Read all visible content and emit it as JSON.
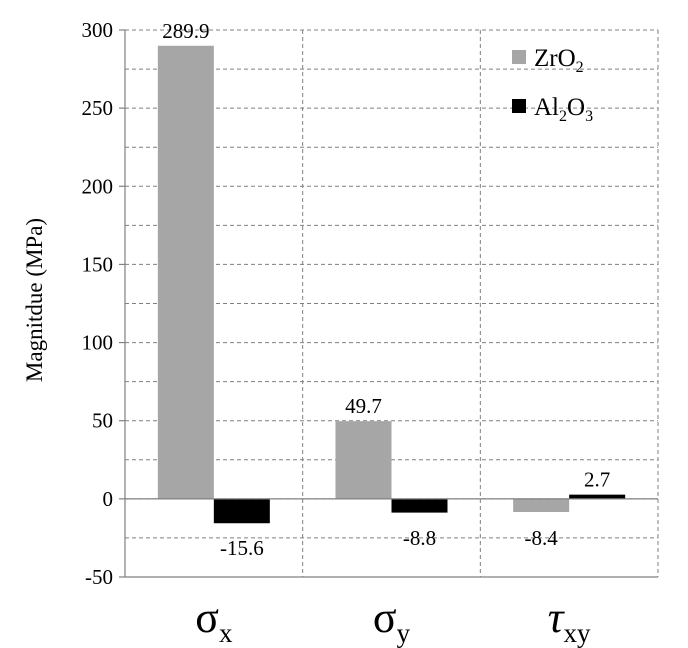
{
  "chart_data": {
    "type": "bar",
    "categories": [
      "σx",
      "σy",
      "τxy"
    ],
    "category_labels": [
      {
        "main": "σ",
        "sub": "x"
      },
      {
        "main": "σ",
        "sub": "y"
      },
      {
        "main": "τ",
        "sub": "xy"
      }
    ],
    "series": [
      {
        "name": "ZrO2",
        "legend": {
          "main": "ZrO",
          "sub": "2"
        },
        "color": "#a6a6a6",
        "values": [
          289.9,
          49.7,
          -8.4
        ],
        "labels": [
          "289.9",
          "49.7",
          "-8.4"
        ]
      },
      {
        "name": "Al2O3",
        "legend": {
          "parts": [
            {
              "t": "Al",
              "s": false
            },
            {
              "t": "2",
              "s": true
            },
            {
              "t": "O",
              "s": false
            },
            {
              "t": "3",
              "s": true
            }
          ]
        },
        "color": "#000000",
        "values": [
          -15.6,
          -8.8,
          2.7
        ],
        "labels": [
          "-15.6",
          "-8.8",
          "2.7"
        ]
      }
    ],
    "ylabel": "Magnitdue (MPa)",
    "ylim": [
      -50,
      300
    ],
    "yticks": [
      -50,
      0,
      50,
      100,
      150,
      200,
      250,
      300
    ],
    "grid": true,
    "legend_position": "top-right"
  }
}
